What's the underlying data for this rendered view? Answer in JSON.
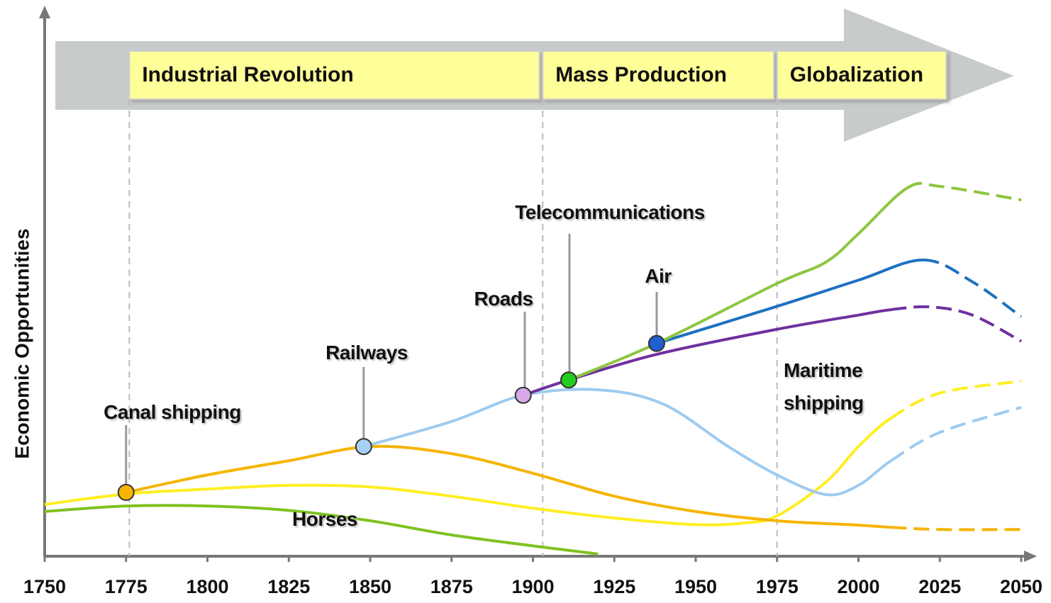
{
  "chart_data": {
    "type": "line",
    "ylabel": "Economic Opportunities",
    "xlim": [
      1750,
      2050
    ],
    "xticks": [
      1750,
      1775,
      1800,
      1825,
      1850,
      1875,
      1900,
      1925,
      1950,
      1975,
      2000,
      2025,
      2050
    ],
    "ylim": [
      0,
      100
    ],
    "eras": [
      {
        "label": "Industrial Revolution",
        "start": 1776,
        "end": 1902
      },
      {
        "label": "Mass Production",
        "start": 1903,
        "end": 1974
      },
      {
        "label": "Globalization",
        "start": 1975,
        "end": 2027
      }
    ],
    "series": [
      {
        "name": "Horses",
        "color": "#7dc21e",
        "x": [
          1750,
          1775,
          1800,
          1825,
          1850,
          1875,
          1900,
          1920
        ],
        "values": [
          8.2,
          9.2,
          9.2,
          8.4,
          6.5,
          3.9,
          1.9,
          0.4
        ]
      },
      {
        "name": "Maritime shipping",
        "color": "#ffee22",
        "dashed_from": 2010,
        "x": [
          1750,
          1775,
          1800,
          1825,
          1850,
          1875,
          1900,
          1925,
          1950,
          1965,
          1975,
          1990,
          2000,
          2010,
          2025,
          2050
        ],
        "values": [
          9.5,
          11.4,
          12.3,
          13.0,
          12.7,
          11.0,
          8.8,
          7.0,
          5.8,
          6.1,
          7.4,
          13.6,
          20.1,
          25.3,
          29.9,
          32.1
        ]
      },
      {
        "name": "Canal shipping",
        "color": "#f5b400",
        "marker_color": "#f5b400",
        "dashed_from": 2010,
        "x": [
          1775,
          1800,
          1825,
          1850,
          1875,
          1900,
          1925,
          1950,
          1975,
          2000,
          2010,
          2025,
          2050
        ],
        "values": [
          11.7,
          14.9,
          17.5,
          20.1,
          18.8,
          15.2,
          11.0,
          8.2,
          6.5,
          5.7,
          5.3,
          4.9,
          4.9
        ]
      },
      {
        "name": "Railways",
        "color": "#9ecbf0",
        "marker_color": "#a8d0f2",
        "dashed_from": 2010,
        "x": [
          1848,
          1875,
          1897,
          1920,
          1940,
          1960,
          1975,
          1990,
          2000,
          2010,
          2025,
          2050
        ],
        "values": [
          20.1,
          24.7,
          29.5,
          30.5,
          27.9,
          20.1,
          14.9,
          11.3,
          13.0,
          17.5,
          22.7,
          27.3
        ]
      },
      {
        "name": "Roads",
        "color": "#7030a0",
        "marker_color": "#d8a8e8",
        "dashed_from": 2010,
        "x": [
          1897,
          1911,
          1938,
          1975,
          2000,
          2010,
          2022,
          2035,
          2050
        ],
        "values": [
          29.5,
          32.3,
          37.0,
          41.6,
          44.2,
          45.2,
          45.7,
          44.2,
          39.4
        ]
      },
      {
        "name": "Telecommunications",
        "color": "#8cc63f",
        "marker_color": "#22cc22",
        "dashed_from": 2015,
        "x": [
          1911,
          1938,
          1975,
          1990,
          2000,
          2015,
          2025,
          2050
        ],
        "values": [
          32.3,
          39.0,
          50.0,
          53.9,
          59.1,
          67.5,
          67.8,
          65.3
        ]
      },
      {
        "name": "Air",
        "color": "#1f70c1",
        "marker_color": "#1f5fd0",
        "dashed_from": 2020,
        "x": [
          1938,
          1975,
          2000,
          2020,
          2035,
          2050
        ],
        "values": [
          39.0,
          45.8,
          50.6,
          54.3,
          50.3,
          43.9
        ]
      }
    ]
  }
}
